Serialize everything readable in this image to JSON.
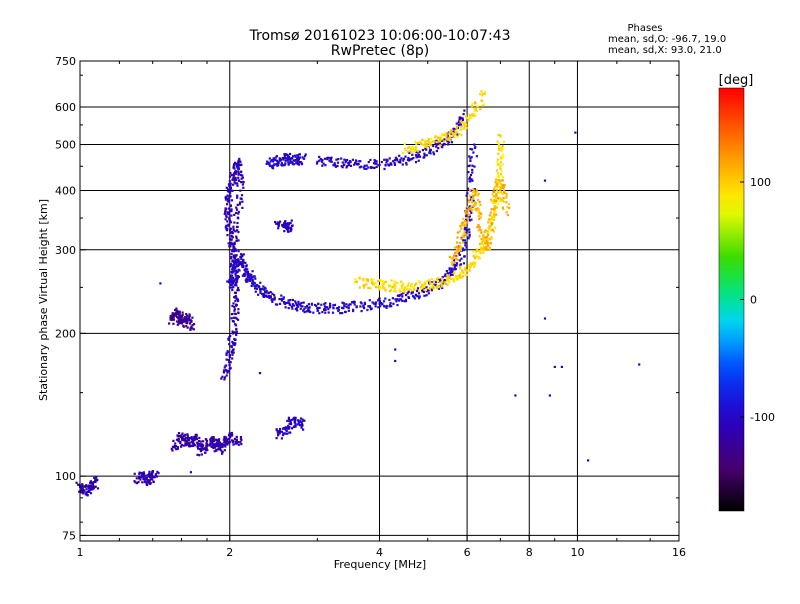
{
  "chart_data": {
    "type": "scatter",
    "title": "Tromsø 20161023 10:06:00-10:07:43",
    "subtitle": "RwPretec (8p)",
    "xlabel": "Frequency [MHz]",
    "ylabel": "Stationary phase Virtual Height [km]",
    "x_scale": "log2",
    "y_scale": "log",
    "xlim": [
      1,
      16
    ],
    "ylim": [
      73,
      750
    ],
    "x_ticks": [
      1,
      2,
      4,
      6,
      8,
      10,
      16
    ],
    "x_tick_labels": [
      "1",
      "2",
      "4",
      "6",
      "8",
      "10",
      "16"
    ],
    "y_ticks": [
      75,
      100,
      200,
      300,
      400,
      500,
      600,
      750
    ],
    "y_tick_labels": [
      "75",
      "100",
      "200",
      "300",
      "400",
      "500",
      "600",
      "750"
    ],
    "grid": true,
    "legend": {
      "title": "Phases",
      "line1": "mean, sd,O: -96.7, 19.0",
      "line2": "mean, sd,X:  93.0, 21.0"
    },
    "colorbar": {
      "label": "[deg]",
      "range": [
        -180,
        180
      ],
      "ticks": [
        100,
        0,
        -100
      ],
      "tick_labels": [
        "100",
        "0",
        "-100"
      ]
    },
    "traces": [
      {
        "name": "lower-trace-1",
        "x": [
          1.0,
          1.02,
          1.05,
          1.08
        ],
        "y": [
          95,
          93,
          94,
          98
        ],
        "phase": -110
      },
      {
        "name": "lower-trace-2",
        "x": [
          1.3,
          1.35,
          1.38,
          1.42
        ],
        "y": [
          99,
          100,
          98,
          101
        ],
        "phase": -112
      },
      {
        "name": "low-es-blob",
        "x": [
          1.52,
          1.56,
          1.6,
          1.64,
          1.68
        ],
        "y": [
          214,
          221,
          210,
          218,
          205
        ],
        "phase": -128
      },
      {
        "name": "ripple-trace",
        "x": [
          1.55,
          1.6,
          1.65,
          1.7,
          1.75,
          1.8,
          1.85,
          1.9,
          1.95,
          2.0,
          2.1
        ],
        "y": [
          115,
          122,
          117,
          121,
          113,
          117,
          119,
          114,
          118,
          121,
          118
        ],
        "phase": -115
      },
      {
        "name": "vertical-cusp-2mhz",
        "x": [
          1.95,
          2.0,
          2.03,
          2.06,
          2.05,
          2.03,
          2.0,
          1.98,
          2.0,
          2.04,
          2.08,
          2.1,
          2.06,
          2.02
        ],
        "y": [
          160,
          180,
          200,
          230,
          260,
          300,
          330,
          360,
          400,
          430,
          460,
          400,
          320,
          250
        ],
        "phase": -108
      },
      {
        "name": "upper-cusp-2mhz",
        "x": [
          2.0,
          2.05,
          2.1,
          2.15,
          2.2,
          2.3,
          2.4,
          2.6,
          2.8,
          3.0
        ],
        "y": [
          250,
          275,
          290,
          270,
          262,
          248,
          240,
          232,
          228,
          226
        ],
        "phase": -100
      },
      {
        "name": "f-layer-o-mode",
        "x": [
          3.0,
          3.3,
          3.6,
          4.0,
          4.4,
          4.8,
          5.2,
          5.5,
          5.8,
          6.0,
          6.1,
          6.2
        ],
        "y": [
          226,
          226,
          228,
          231,
          236,
          243,
          252,
          263,
          285,
          330,
          400,
          500
        ],
        "phase": -97
      },
      {
        "name": "f-layer-x-mode",
        "x": [
          3.6,
          3.9,
          4.2,
          4.5,
          4.9,
          5.3,
          5.7,
          6.1,
          6.4,
          6.7,
          6.9,
          7.0,
          7.0
        ],
        "y": [
          257,
          254,
          252,
          250,
          252,
          256,
          264,
          277,
          300,
          330,
          380,
          450,
          520
        ],
        "phase": 93
      },
      {
        "name": "f2-spread-band",
        "x": [
          5.6,
          5.8,
          6.0,
          6.2,
          6.4,
          6.6,
          6.8,
          7.0,
          7.2
        ],
        "y": [
          280,
          310,
          350,
          400,
          330,
          300,
          380,
          420,
          360
        ],
        "phase": 110
      },
      {
        "name": "upper-oblique-trace",
        "x": [
          3.0,
          3.3,
          3.6,
          4.0,
          4.4,
          4.8,
          5.2,
          5.6,
          5.9
        ],
        "y": [
          460,
          458,
          455,
          453,
          460,
          475,
          495,
          520,
          580
        ],
        "phase": -102
      },
      {
        "name": "upper-oblique-x",
        "x": [
          4.5,
          4.9,
          5.3,
          5.7,
          6.1,
          6.5
        ],
        "y": [
          490,
          500,
          512,
          530,
          570,
          640
        ],
        "phase": 95
      },
      {
        "name": "isolated-low-2-5",
        "x": [
          2.5,
          2.6,
          2.7,
          2.8
        ],
        "y": [
          122,
          126,
          131,
          128
        ],
        "phase": -100
      },
      {
        "name": "isolated-mid-2-6",
        "x": [
          2.5,
          2.6,
          2.65
        ],
        "y": [
          340,
          335,
          342
        ],
        "phase": -105
      },
      {
        "name": "isolated-high-2-4",
        "x": [
          2.4,
          2.5,
          2.6,
          2.7,
          2.8
        ],
        "y": [
          455,
          460,
          468,
          462,
          470
        ],
        "phase": -98
      },
      {
        "name": "scatter-outliers",
        "x": [
          4.3,
          4.3,
          7.5,
          8.8,
          9.0,
          9.3,
          10.5,
          9.9,
          8.6,
          8.6,
          13.3,
          1.67,
          2.3,
          2.1,
          1.45
        ],
        "y": [
          175,
          185,
          148,
          148,
          170,
          170,
          108,
          530,
          420,
          215,
          172,
          102,
          165,
          460,
          255
        ],
        "phase": -100
      }
    ]
  }
}
